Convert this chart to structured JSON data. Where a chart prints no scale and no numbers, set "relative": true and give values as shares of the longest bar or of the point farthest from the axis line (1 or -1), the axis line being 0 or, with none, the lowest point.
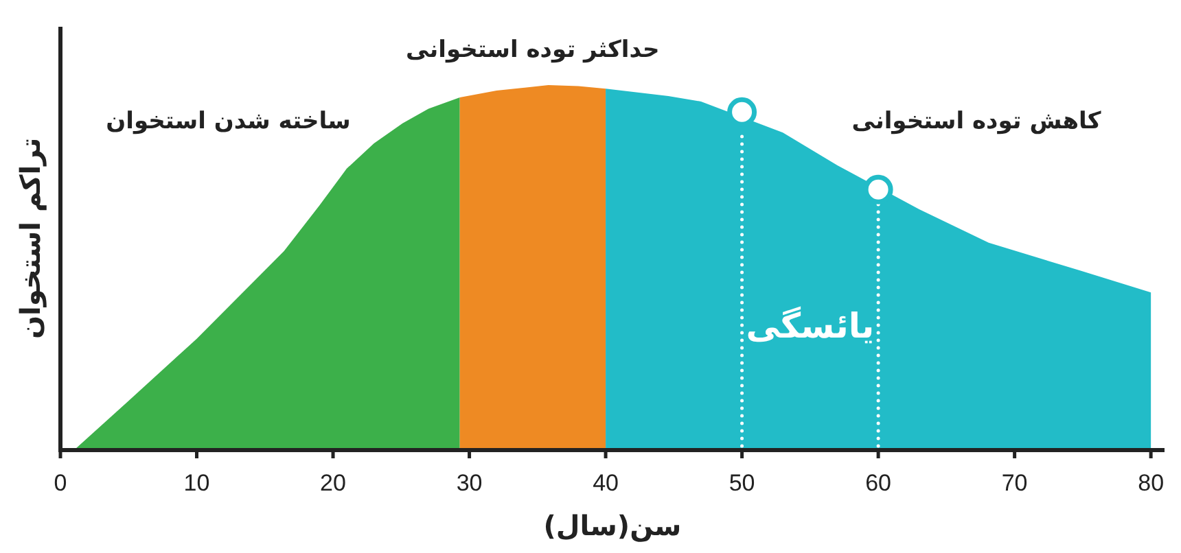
{
  "chart_data": {
    "type": "area",
    "relative": true,
    "xlabel": "سن(سال)",
    "ylabel": "تراکم استخوان",
    "xlim": [
      0,
      81
    ],
    "xticks": [
      0,
      10,
      20,
      30,
      40,
      50,
      60,
      70,
      80
    ],
    "series": [
      {
        "name": "ساخته شدن استخوان",
        "color": "#3cb04a",
        "x": [
          1,
          5,
          10,
          16.4,
          19,
          21,
          23,
          25.1,
          27,
          29.3
        ],
        "values": [
          0,
          0.135,
          0.305,
          0.545,
          0.67,
          0.771,
          0.84,
          0.895,
          0.935,
          0.966
        ]
      },
      {
        "name": "حداکثر توده استخوانی",
        "color": "#ee8a23",
        "x": [
          29.3,
          32,
          35.8,
          38,
          40
        ],
        "values": [
          0.966,
          0.985,
          1.0,
          0.997,
          0.99
        ]
      },
      {
        "name": "کاهش توده استخوانی",
        "color": "#22bcc8",
        "x": [
          40,
          44.6,
          47,
          53,
          57,
          63,
          68.1,
          74.8,
          80
        ],
        "values": [
          0.99,
          0.97,
          0.955,
          0.87,
          0.78,
          0.66,
          0.568,
          0.492,
          0.432
        ]
      },
      {
        "type": "scatter",
        "marker": "circle",
        "color": "#22bcc8",
        "x": [
          50,
          60
        ],
        "values": [
          0.926,
          0.714
        ]
      }
    ],
    "ref_lines": [
      {
        "axis": "x",
        "value": 50,
        "color": "#ffffff",
        "line_style": "dotted"
      },
      {
        "axis": "x",
        "value": 60,
        "color": "#ffffff",
        "line_style": "dotted"
      }
    ],
    "annotations": [
      "یائسگی"
    ]
  }
}
